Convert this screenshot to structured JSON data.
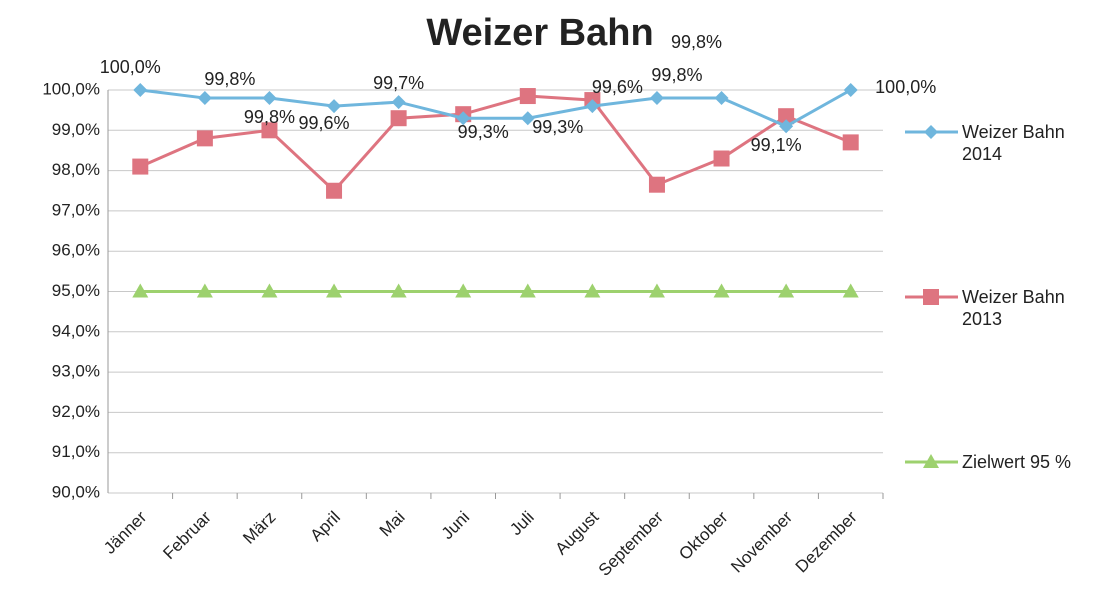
{
  "chart_data": {
    "type": "line",
    "title": "Weizer Bahn",
    "categories": [
      "Jänner",
      "Februar",
      "März",
      "April",
      "Mai",
      "Juni",
      "Juli",
      "August",
      "September",
      "Oktober",
      "November",
      "Dezember"
    ],
    "series": [
      {
        "name": "Weizer Bahn 2014",
        "color": "#6fb6dd",
        "marker": "diamond",
        "values": [
          100.0,
          99.8,
          99.8,
          99.6,
          99.7,
          99.3,
          99.3,
          99.6,
          99.8,
          99.8,
          99.1,
          100.0
        ],
        "value_labels": [
          "100,0%",
          "99,8%",
          "99,8%",
          "99,6%",
          "99,7%",
          "99,3%",
          "99,3%",
          "99,6%",
          "99,8%",
          "99,8%",
          "99,1%",
          "100,0%"
        ]
      },
      {
        "name": "Weizer Bahn 2013",
        "color": "#de7480",
        "marker": "square",
        "values": [
          98.1,
          98.8,
          99.0,
          97.5,
          99.3,
          99.4,
          99.85,
          99.75,
          97.65,
          98.3,
          99.35,
          98.7
        ]
      },
      {
        "name": "Zielwert 95 %",
        "color": "#9dd16e",
        "marker": "triangle",
        "values": [
          95,
          95,
          95,
          95,
          95,
          95,
          95,
          95,
          95,
          95,
          95,
          95
        ]
      }
    ],
    "ylim": [
      90,
      100
    ],
    "yticks": [
      {
        "value": 90,
        "label": "90,0%"
      },
      {
        "value": 91,
        "label": "91,0%"
      },
      {
        "value": 92,
        "label": "92,0%"
      },
      {
        "value": 93,
        "label": "93,0%"
      },
      {
        "value": 94,
        "label": "94,0%"
      },
      {
        "value": 95,
        "label": "95,0%"
      },
      {
        "value": 96,
        "label": "96,0%"
      },
      {
        "value": 97,
        "label": "97,0%"
      },
      {
        "value": 98,
        "label": "98,0%"
      },
      {
        "value": 99,
        "label": "99,0%"
      },
      {
        "value": 100,
        "label": "100,0%"
      }
    ],
    "grid": true,
    "legend": "right"
  }
}
